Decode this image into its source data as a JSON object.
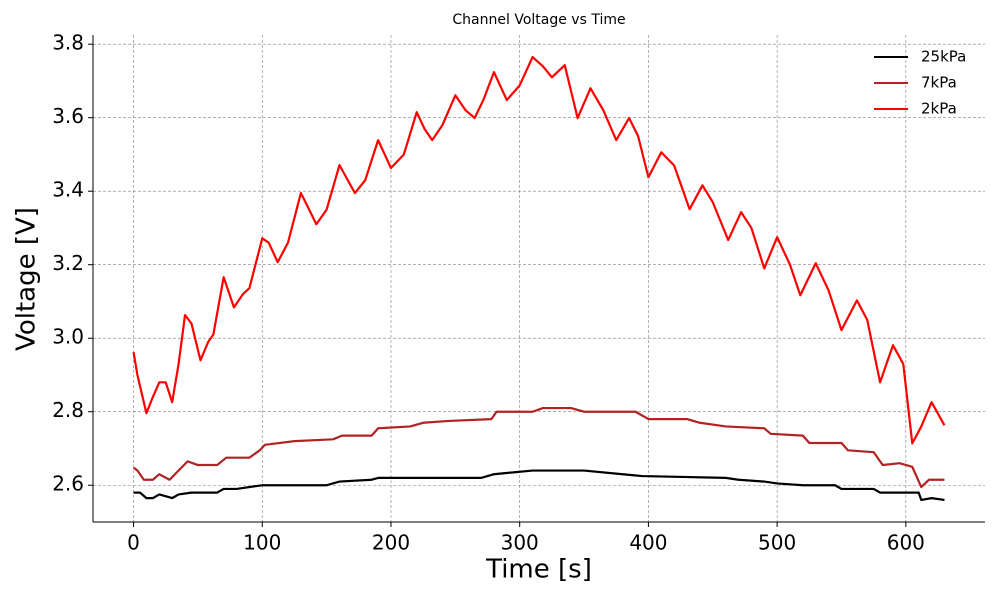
{
  "chart_data": {
    "type": "line",
    "title": "Channel Voltage vs Time",
    "x_label": "Time [s]",
    "y_label": "Voltage [V]",
    "xlim": [
      -31.5,
      661.5
    ],
    "ylim": [
      2.5,
      3.825
    ],
    "xticks": [
      0,
      100,
      200,
      300,
      400,
      500,
      600
    ],
    "yticks": [
      2.6,
      2.8,
      {
        "value": 3,
        "label": "3.0"
      },
      3.2,
      3.4,
      3.6,
      3.8
    ],
    "grid": true,
    "legend": "upper right",
    "series": [
      {
        "name": "25kPa",
        "color": "#000000",
        "x": [
          0,
          5,
          10,
          15,
          20,
          30,
          35,
          45,
          65,
          70,
          80,
          100,
          150,
          160,
          185,
          190,
          270,
          280,
          310,
          350,
          380,
          395,
          460,
          470,
          490,
          500,
          520,
          545,
          550,
          575,
          580,
          610,
          612,
          620,
          630
        ],
        "values": [
          2.58,
          2.58,
          2.565,
          2.565,
          2.575,
          2.565,
          2.575,
          2.58,
          2.58,
          2.59,
          2.59,
          2.6,
          2.6,
          2.61,
          2.615,
          2.62,
          2.62,
          2.63,
          2.64,
          2.64,
          2.63,
          2.625,
          2.62,
          2.615,
          2.61,
          2.605,
          2.6,
          2.6,
          2.59,
          2.59,
          2.58,
          2.58,
          2.56,
          2.565,
          2.56
        ]
      },
      {
        "name": "7kPa",
        "color": "#b22222",
        "x": [
          0,
          3,
          8,
          15,
          20,
          28,
          35,
          42,
          50,
          65,
          72,
          90,
          98,
          102,
          125,
          155,
          162,
          185,
          190,
          215,
          225,
          245,
          278,
          282,
          310,
          318,
          340,
          350,
          390,
          400,
          430,
          440,
          460,
          490,
          495,
          520,
          525,
          550,
          555,
          575,
          582,
          595,
          605,
          612,
          618,
          630
        ],
        "values": [
          2.648,
          2.64,
          2.615,
          2.615,
          2.63,
          2.615,
          2.64,
          2.665,
          2.655,
          2.655,
          2.675,
          2.675,
          2.695,
          2.71,
          2.72,
          2.725,
          2.735,
          2.735,
          2.755,
          2.76,
          2.77,
          2.775,
          2.78,
          2.8,
          2.8,
          2.81,
          2.81,
          2.8,
          2.8,
          2.78,
          2.78,
          2.77,
          2.76,
          2.755,
          2.74,
          2.735,
          2.715,
          2.715,
          2.695,
          2.69,
          2.655,
          2.66,
          2.65,
          2.595,
          2.615,
          2.615
        ]
      },
      {
        "name": "2kPa",
        "color": "#ff0000",
        "x": [
          0,
          3,
          10,
          15,
          20,
          25,
          30,
          35,
          40,
          45,
          52,
          58,
          62,
          70,
          78,
          85,
          90,
          100,
          105,
          112,
          120,
          130,
          135,
          142,
          150,
          160,
          168,
          172,
          180,
          190,
          200,
          210,
          220,
          226,
          232,
          240,
          250,
          258,
          265,
          272,
          280,
          290,
          300,
          310,
          318,
          325,
          335,
          345,
          355,
          365,
          375,
          385,
          392,
          400,
          410,
          420,
          432,
          442,
          450,
          462,
          472,
          480,
          490,
          500,
          510,
          518,
          530,
          540,
          550,
          562,
          570,
          580,
          590,
          598,
          605,
          612,
          620,
          630
        ],
        "values": [
          2.962,
          2.9,
          2.796,
          2.84,
          2.88,
          2.88,
          2.826,
          2.93,
          3.063,
          3.04,
          2.94,
          2.99,
          3.01,
          3.166,
          3.084,
          3.12,
          3.136,
          3.272,
          3.26,
          3.207,
          3.26,
          3.395,
          3.36,
          3.31,
          3.35,
          3.471,
          3.42,
          3.395,
          3.43,
          3.539,
          3.463,
          3.5,
          3.615,
          3.57,
          3.539,
          3.58,
          3.661,
          3.62,
          3.599,
          3.65,
          3.724,
          3.648,
          3.688,
          3.765,
          3.74,
          3.71,
          3.743,
          3.599,
          3.68,
          3.62,
          3.539,
          3.599,
          3.55,
          3.438,
          3.506,
          3.47,
          3.351,
          3.416,
          3.37,
          3.267,
          3.343,
          3.3,
          3.19,
          3.275,
          3.2,
          3.117,
          3.204,
          3.13,
          3.022,
          3.103,
          3.05,
          2.88,
          2.981,
          2.93,
          2.714,
          2.76,
          2.826,
          2.763
        ]
      }
    ]
  }
}
